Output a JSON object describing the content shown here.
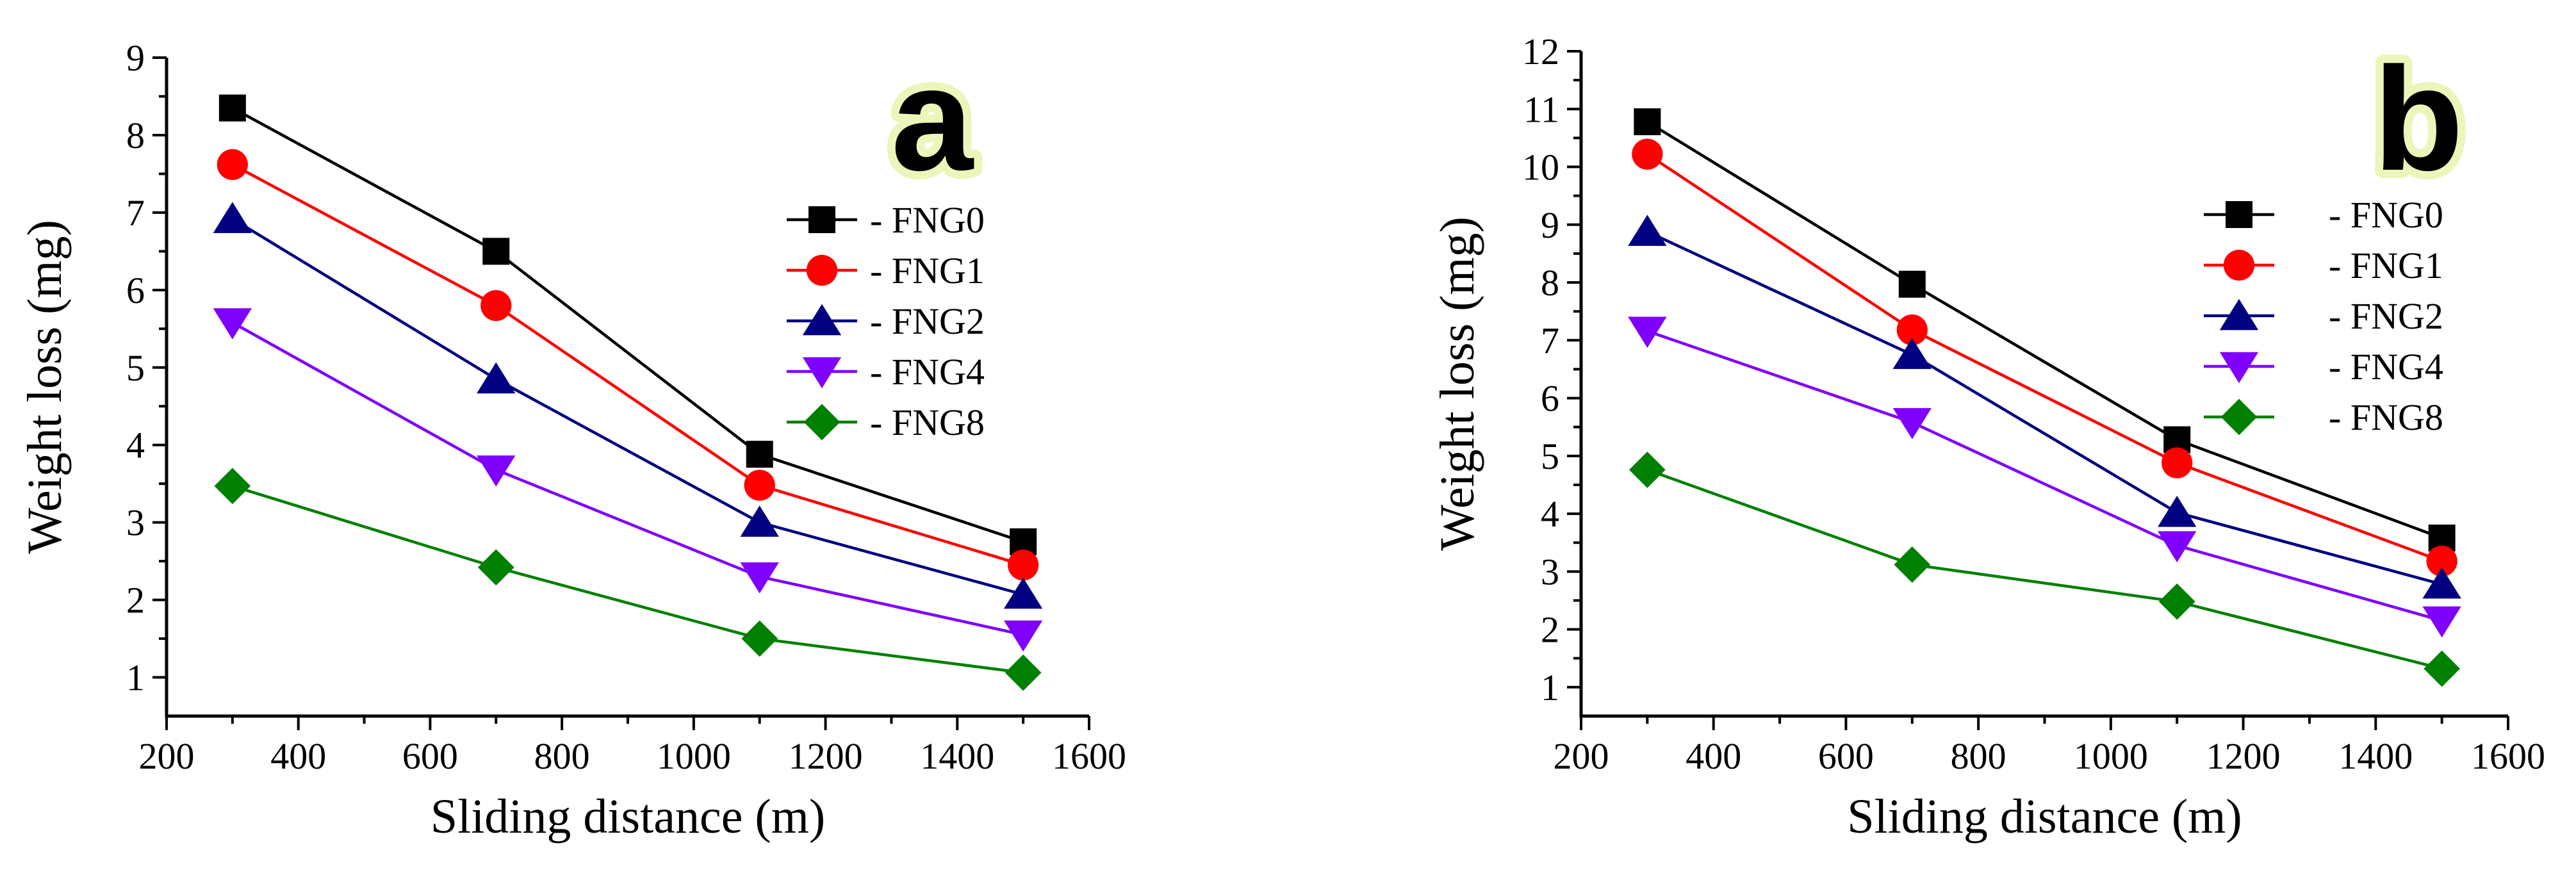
{
  "chart_data": [
    {
      "type": "line",
      "panel_label": "a",
      "xlabel": "Sliding distance (m)",
      "ylabel": "Weight loss (mg)",
      "xlim": [
        200,
        1600
      ],
      "ylim": [
        0.5,
        9
      ],
      "xticks": [
        200,
        400,
        600,
        800,
        1000,
        1200,
        1400,
        1600
      ],
      "yticks": [
        1,
        2,
        3,
        4,
        5,
        6,
        7,
        8,
        9
      ],
      "x": [
        300,
        700,
        1100,
        1500
      ],
      "legend_position": "right",
      "series": [
        {
          "name": "- FNG0",
          "values": [
            8.35,
            6.5,
            3.88,
            2.75
          ],
          "color": "#000000",
          "marker": "square"
        },
        {
          "name": "- FNG1",
          "values": [
            7.62,
            5.8,
            3.48,
            2.45
          ],
          "color": "#ff0000",
          "marker": "circle"
        },
        {
          "name": "- FNG2",
          "values": [
            6.92,
            4.85,
            3.0,
            2.07
          ],
          "color": "#000080",
          "marker": "triangle-up"
        },
        {
          "name": "- FNG4",
          "values": [
            5.58,
            3.68,
            2.3,
            1.55
          ],
          "color": "#8000ff",
          "marker": "triangle-down"
        },
        {
          "name": "- FNG8",
          "values": [
            3.47,
            2.42,
            1.5,
            1.06
          ],
          "color": "#008000",
          "marker": "diamond"
        }
      ]
    },
    {
      "type": "line",
      "panel_label": "b",
      "xlabel": "Sliding distance (m)",
      "ylabel": "Weight loss (mg)",
      "xlim": [
        200,
        1600
      ],
      "ylim": [
        0.5,
        12
      ],
      "xticks": [
        200,
        400,
        600,
        800,
        1000,
        1200,
        1400,
        1600
      ],
      "yticks": [
        1,
        2,
        3,
        4,
        5,
        6,
        7,
        8,
        9,
        10,
        11,
        12
      ],
      "x": [
        300,
        700,
        1100,
        1500
      ],
      "legend_position": "top-right",
      "series": [
        {
          "name": "- FNG0",
          "values": [
            10.78,
            7.97,
            5.28,
            3.58
          ],
          "color": "#000000",
          "marker": "square"
        },
        {
          "name": "- FNG1",
          "values": [
            10.22,
            7.18,
            4.88,
            3.18
          ],
          "color": "#ff0000",
          "marker": "circle"
        },
        {
          "name": "- FNG2",
          "values": [
            8.88,
            6.75,
            4.02,
            2.78
          ],
          "color": "#000080",
          "marker": "triangle-up"
        },
        {
          "name": "- FNG4",
          "values": [
            7.16,
            5.58,
            3.45,
            2.15
          ],
          "color": "#8000ff",
          "marker": "triangle-down"
        },
        {
          "name": "- FNG8",
          "values": [
            4.76,
            3.12,
            2.48,
            1.32
          ],
          "color": "#008000",
          "marker": "diamond"
        }
      ]
    }
  ]
}
